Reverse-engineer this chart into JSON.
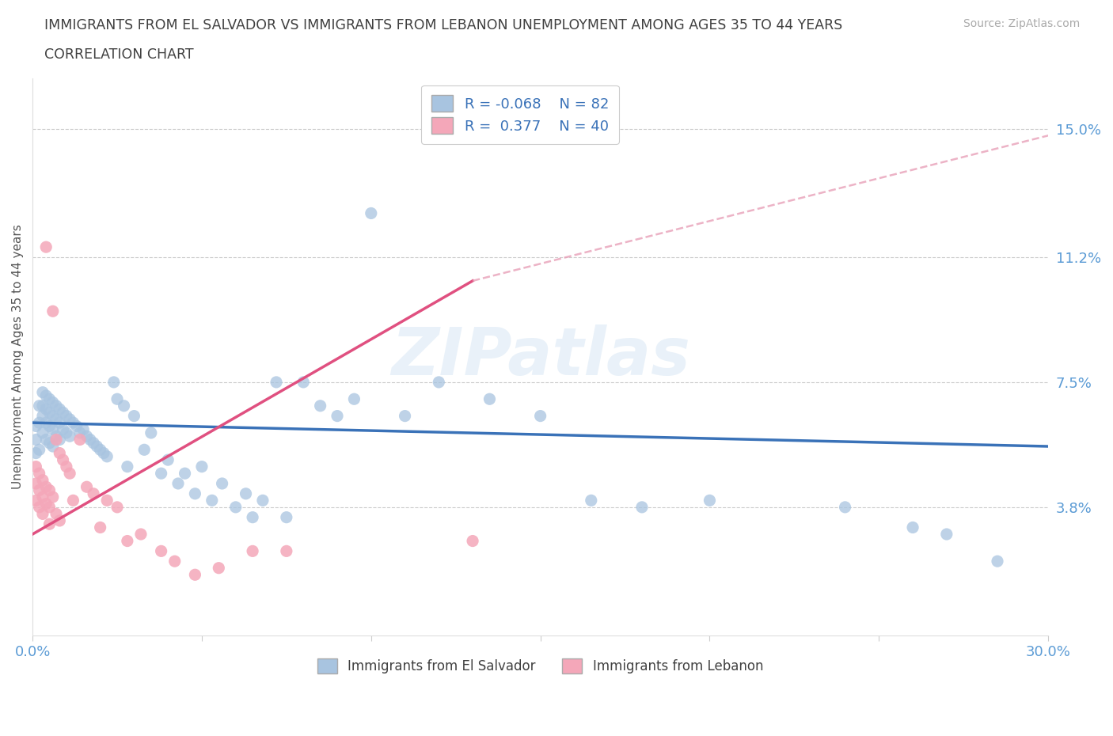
{
  "title_line1": "IMMIGRANTS FROM EL SALVADOR VS IMMIGRANTS FROM LEBANON UNEMPLOYMENT AMONG AGES 35 TO 44 YEARS",
  "title_line2": "CORRELATION CHART",
  "source_text": "Source: ZipAtlas.com",
  "ylabel": "Unemployment Among Ages 35 to 44 years",
  "xlim": [
    0.0,
    0.3
  ],
  "ylim": [
    0.0,
    0.165
  ],
  "xticks": [
    0.0,
    0.05,
    0.1,
    0.15,
    0.2,
    0.25,
    0.3
  ],
  "ytick_right": [
    0.038,
    0.075,
    0.112,
    0.15
  ],
  "ytick_right_labels": [
    "3.8%",
    "7.5%",
    "11.2%",
    "15.0%"
  ],
  "color_salvador": "#a8c4e0",
  "color_lebanon": "#f4a7b9",
  "color_line_salvador": "#3a72b8",
  "color_line_lebanon": "#e05080",
  "color_dashed": "#e8a0b8",
  "legend_R_salvador": "-0.068",
  "legend_N_salvador": 82,
  "legend_R_lebanon": "0.377",
  "legend_N_lebanon": 40,
  "watermark": "ZIPatlas",
  "salvador_x": [
    0.001,
    0.001,
    0.001,
    0.002,
    0.002,
    0.002,
    0.003,
    0.003,
    0.003,
    0.003,
    0.004,
    0.004,
    0.004,
    0.004,
    0.005,
    0.005,
    0.005,
    0.005,
    0.006,
    0.006,
    0.006,
    0.006,
    0.007,
    0.007,
    0.007,
    0.008,
    0.008,
    0.008,
    0.009,
    0.009,
    0.01,
    0.01,
    0.011,
    0.011,
    0.012,
    0.013,
    0.014,
    0.015,
    0.016,
    0.017,
    0.018,
    0.019,
    0.02,
    0.021,
    0.022,
    0.024,
    0.025,
    0.027,
    0.028,
    0.03,
    0.033,
    0.035,
    0.038,
    0.04,
    0.043,
    0.045,
    0.048,
    0.05,
    0.053,
    0.056,
    0.06,
    0.063,
    0.065,
    0.068,
    0.072,
    0.075,
    0.08,
    0.085,
    0.09,
    0.095,
    0.1,
    0.11,
    0.12,
    0.135,
    0.15,
    0.165,
    0.18,
    0.2,
    0.24,
    0.26,
    0.27,
    0.285
  ],
  "salvador_y": [
    0.062,
    0.058,
    0.054,
    0.068,
    0.063,
    0.055,
    0.072,
    0.068,
    0.065,
    0.06,
    0.071,
    0.067,
    0.063,
    0.058,
    0.07,
    0.066,
    0.062,
    0.057,
    0.069,
    0.065,
    0.061,
    0.056,
    0.068,
    0.064,
    0.059,
    0.067,
    0.063,
    0.058,
    0.066,
    0.061,
    0.065,
    0.06,
    0.064,
    0.059,
    0.063,
    0.062,
    0.06,
    0.061,
    0.059,
    0.058,
    0.057,
    0.056,
    0.055,
    0.054,
    0.053,
    0.075,
    0.07,
    0.068,
    0.05,
    0.065,
    0.055,
    0.06,
    0.048,
    0.052,
    0.045,
    0.048,
    0.042,
    0.05,
    0.04,
    0.045,
    0.038,
    0.042,
    0.035,
    0.04,
    0.075,
    0.035,
    0.075,
    0.068,
    0.065,
    0.07,
    0.125,
    0.065,
    0.075,
    0.07,
    0.065,
    0.04,
    0.038,
    0.04,
    0.038,
    0.032,
    0.03,
    0.022
  ],
  "lebanon_x": [
    0.001,
    0.001,
    0.001,
    0.002,
    0.002,
    0.002,
    0.003,
    0.003,
    0.003,
    0.004,
    0.004,
    0.004,
    0.005,
    0.005,
    0.005,
    0.006,
    0.006,
    0.007,
    0.007,
    0.008,
    0.008,
    0.009,
    0.01,
    0.011,
    0.012,
    0.014,
    0.016,
    0.018,
    0.02,
    0.022,
    0.025,
    0.028,
    0.032,
    0.038,
    0.042,
    0.048,
    0.055,
    0.065,
    0.075,
    0.13
  ],
  "lebanon_y": [
    0.05,
    0.045,
    0.04,
    0.048,
    0.043,
    0.038,
    0.046,
    0.041,
    0.036,
    0.115,
    0.044,
    0.039,
    0.043,
    0.038,
    0.033,
    0.041,
    0.096,
    0.058,
    0.036,
    0.054,
    0.034,
    0.052,
    0.05,
    0.048,
    0.04,
    0.058,
    0.044,
    0.042,
    0.032,
    0.04,
    0.038,
    0.028,
    0.03,
    0.025,
    0.022,
    0.018,
    0.02,
    0.025,
    0.025,
    0.028
  ],
  "sal_line_x0": 0.0,
  "sal_line_x1": 0.3,
  "sal_line_y0": 0.063,
  "sal_line_y1": 0.056,
  "leb_line_x0": 0.0,
  "leb_line_x1": 0.13,
  "leb_line_y0": 0.03,
  "leb_line_y1": 0.105,
  "dash_line_x0": 0.13,
  "dash_line_x1": 0.3,
  "dash_line_y0": 0.105,
  "dash_line_y1": 0.148
}
